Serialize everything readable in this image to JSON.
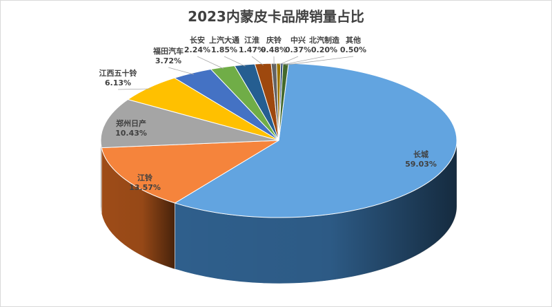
{
  "chart_data": {
    "type": "pie",
    "title": "2023内蒙皮卡品牌销量占比",
    "slices": [
      {
        "name": "长城",
        "value": 59.03,
        "label": "59.03%",
        "color": "#62a4e0",
        "dark": "#2f5f8c"
      },
      {
        "name": "江铃",
        "value": 13.57,
        "label": "13.57%",
        "color": "#f5843c",
        "dark": "#9e4c18"
      },
      {
        "name": "郑州日产",
        "value": 10.43,
        "label": "10.43%",
        "color": "#a5a5a5",
        "dark": "#5c5c5c"
      },
      {
        "name": "江西五十铃",
        "value": 6.13,
        "label": "6.13%",
        "color": "#ffc000",
        "dark": "#9a7400"
      },
      {
        "name": "福田汽车",
        "value": 3.72,
        "label": "3.72%",
        "color": "#4472c4",
        "dark": "#223d6c"
      },
      {
        "name": "长安",
        "value": 2.24,
        "label": "2.24%",
        "color": "#70ad47",
        "dark": "#3b6423"
      },
      {
        "name": "上汽大通",
        "value": 1.85,
        "label": "1.85%",
        "color": "#255e91",
        "dark": "#12314d"
      },
      {
        "name": "江淮",
        "value": 1.47,
        "label": "1.47%",
        "color": "#9e480e",
        "dark": "#5a2707"
      },
      {
        "name": "庆铃",
        "value": 0.48,
        "label": "0.48%",
        "color": "#636363",
        "dark": "#333333"
      },
      {
        "name": "中兴",
        "value": 0.37,
        "label": "0.37%",
        "color": "#997300",
        "dark": "#574100"
      },
      {
        "name": "北汽制造",
        "value": 0.2,
        "label": "0.20%",
        "color": "#264478",
        "dark": "#132240"
      },
      {
        "name": "其他",
        "value": 0.5,
        "label": "0.50%",
        "color": "#43682b",
        "dark": "#223616"
      }
    ],
    "legend": "none",
    "style": "3d-pie"
  }
}
